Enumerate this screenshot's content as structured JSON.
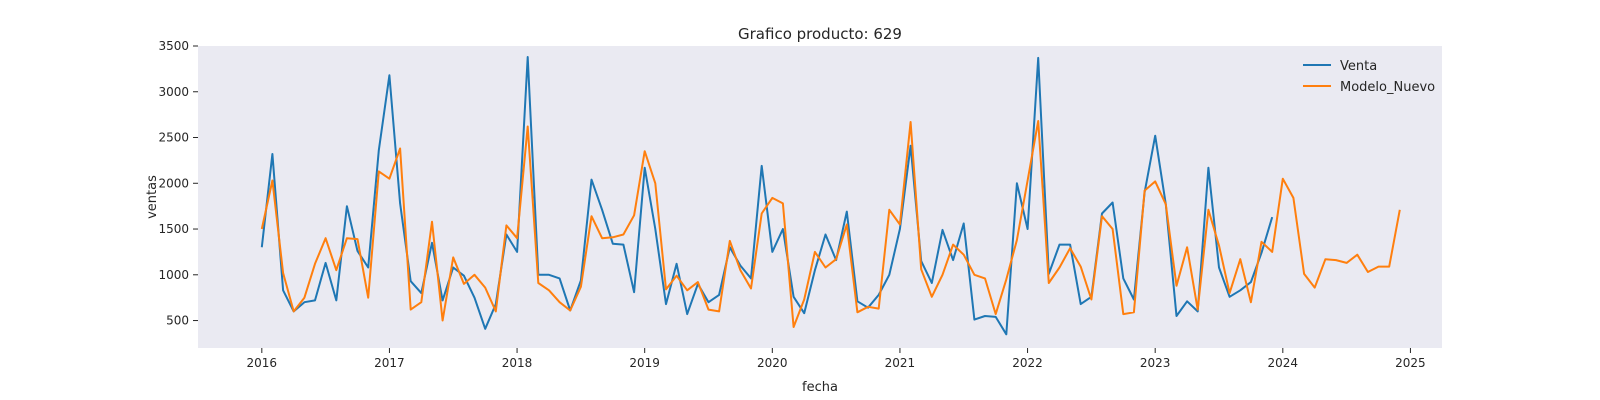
{
  "chart_data": {
    "type": "line",
    "title": "Grafico producto: 629",
    "xlabel": "fecha",
    "ylabel": "ventas",
    "xlim": [
      "2015-07-01",
      "2025-03-31"
    ],
    "ylim": [
      200,
      3500
    ],
    "x_ticks": [
      "2016",
      "2017",
      "2018",
      "2019",
      "2020",
      "2021",
      "2022",
      "2023",
      "2024",
      "2025"
    ],
    "y_ticks": [
      500,
      1000,
      1500,
      2000,
      2500,
      3000,
      3500
    ],
    "grid": false,
    "legend_position": "top-right",
    "background": "#eaeaf2",
    "series": [
      {
        "name": "Venta",
        "color": "#1f77b4",
        "start": "2016-01",
        "values": [
          1300,
          2320,
          830,
          600,
          700,
          720,
          1130,
          720,
          1750,
          1260,
          1080,
          2360,
          3180,
          1780,
          930,
          800,
          1350,
          720,
          1080,
          990,
          750,
          410,
          680,
          1440,
          1250,
          3380,
          1000,
          1000,
          960,
          610,
          940,
          2040,
          1710,
          1340,
          1330,
          810,
          2170,
          1500,
          680,
          1120,
          570,
          900,
          700,
          780,
          1300,
          1100,
          960,
          2190,
          1250,
          1500,
          760,
          580,
          1050,
          1440,
          1160,
          1690,
          710,
          640,
          780,
          1000,
          1500,
          2410,
          1150,
          910,
          1490,
          1160,
          1560,
          510,
          550,
          540,
          350,
          2000,
          1500,
          3370,
          1010,
          1330,
          1330,
          680,
          760,
          1670,
          1790,
          960,
          730,
          1900,
          2520,
          1770,
          550,
          710,
          600,
          2170,
          1080,
          760,
          830,
          920,
          1240,
          1630
        ]
      },
      {
        "name": "Modelo_Nuevo",
        "color": "#ff7f0e",
        "start": "2016-01",
        "values": [
          1500,
          2030,
          1020,
          600,
          750,
          1120,
          1400,
          1050,
          1400,
          1390,
          750,
          2130,
          2050,
          2380,
          620,
          700,
          1580,
          500,
          1190,
          900,
          1000,
          860,
          600,
          1540,
          1400,
          2620,
          910,
          830,
          700,
          610,
          870,
          1640,
          1400,
          1410,
          1440,
          1650,
          2350,
          2000,
          840,
          990,
          830,
          920,
          620,
          600,
          1370,
          1050,
          850,
          1670,
          1840,
          1780,
          430,
          730,
          1250,
          1080,
          1170,
          1550,
          590,
          650,
          630,
          1710,
          1550,
          2670,
          1060,
          760,
          1000,
          1330,
          1220,
          1000,
          960,
          570,
          950,
          1380,
          2030,
          2680,
          910,
          1080,
          1290,
          1090,
          730,
          1640,
          1500,
          570,
          590,
          1920,
          2020,
          1770,
          880,
          1300,
          620,
          1710,
          1320,
          800,
          1170,
          700,
          1360,
          1250,
          2050,
          1840,
          1010,
          860,
          1170,
          1160,
          1130,
          1220,
          1030,
          1090,
          1090,
          1710
        ]
      }
    ]
  }
}
